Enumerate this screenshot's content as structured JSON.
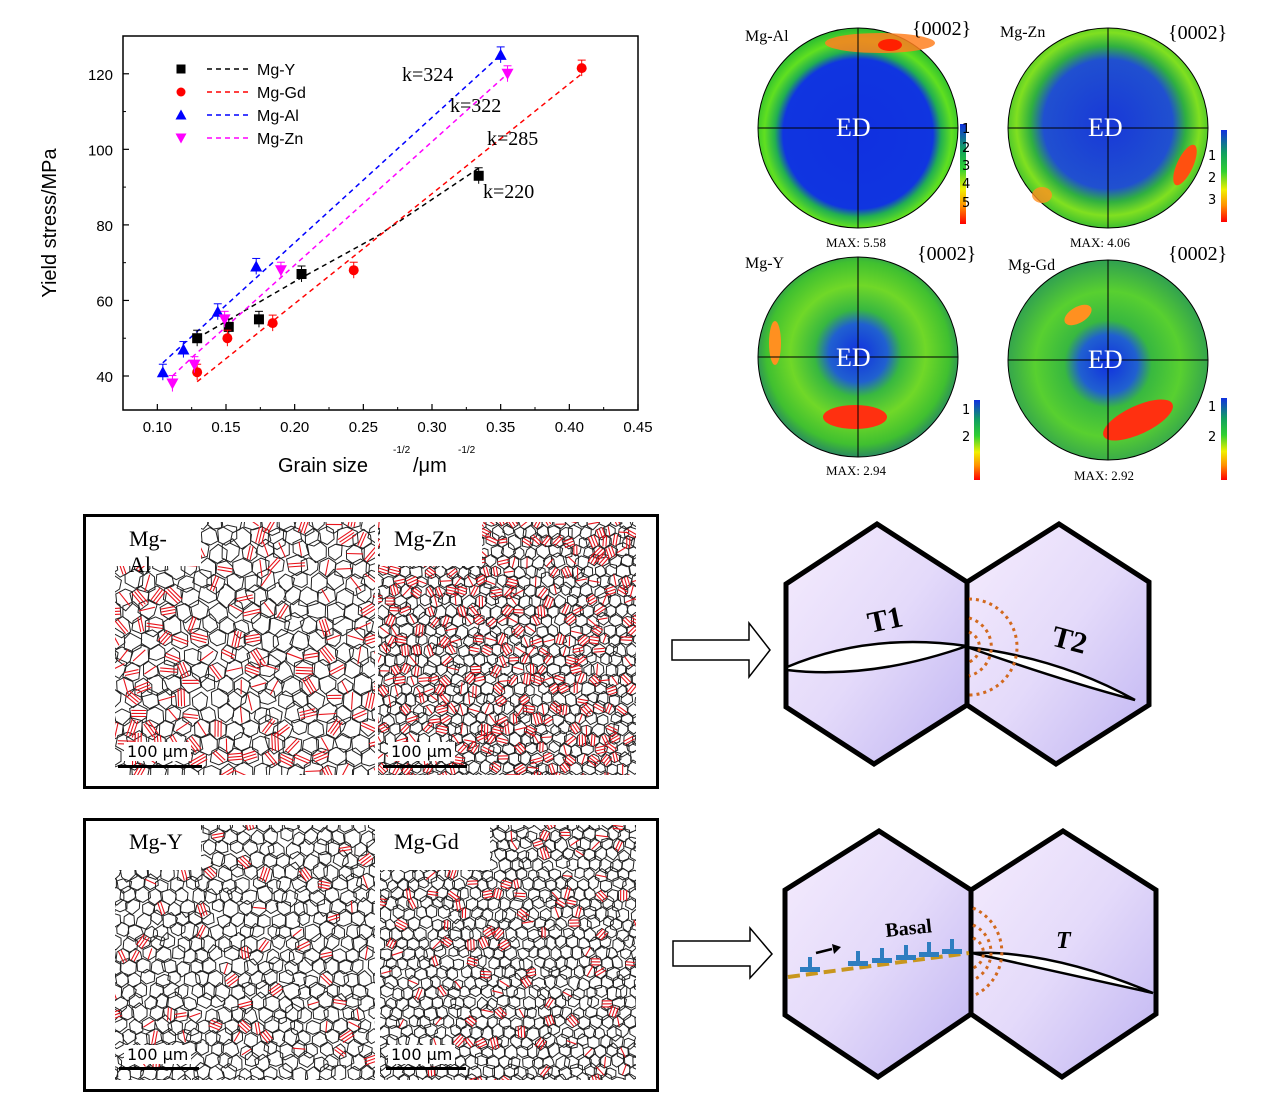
{
  "chart_data": {
    "type": "scatter",
    "title": "",
    "xlabel": "Grain size",
    "xlabel_sup1": "-1/2",
    "xlabel_unit": "/μm",
    "xlabel_sup2": "-1/2",
    "ylabel": "Yield stress/MPa",
    "xlim": [
      0.075,
      0.45
    ],
    "ylim": [
      31,
      130
    ],
    "xticks": [
      "0.10",
      "0.15",
      "0.20",
      "0.25",
      "0.30",
      "0.35",
      "0.40",
      "0.45"
    ],
    "xtick_values": [
      0.1,
      0.15,
      0.2,
      0.25,
      0.3,
      0.35,
      0.4,
      0.45
    ],
    "yticks": [
      "40",
      "60",
      "80",
      "100",
      "120"
    ],
    "ytick_values": [
      40,
      60,
      80,
      100,
      120
    ],
    "legend_position": "top-left",
    "series": [
      {
        "name": "Mg-Y",
        "color": "#000000",
        "marker": "square",
        "x": [
          0.129,
          0.152,
          0.174,
          0.205,
          0.334
        ],
        "y": [
          50,
          53,
          55,
          67,
          93
        ],
        "fit": {
          "x": [
            0.129,
            0.2,
            0.26,
            0.334
          ],
          "y": [
            50,
            65,
            77,
            95
          ]
        }
      },
      {
        "name": "Mg-Gd",
        "color": "#ff0000",
        "marker": "circle",
        "x": [
          0.129,
          0.151,
          0.184,
          0.243,
          0.409
        ],
        "y": [
          41,
          50,
          54,
          68,
          121.5
        ],
        "fit": {
          "x": [
            0.129,
            0.409
          ],
          "y": [
            38.5,
            120
          ]
        }
      },
      {
        "name": "Mg-Al",
        "color": "#0000ff",
        "marker": "triangle-up",
        "x": [
          0.104,
          0.119,
          0.144,
          0.172,
          0.35
        ],
        "y": [
          41,
          47,
          57,
          69,
          125
        ],
        "fit": {
          "x": [
            0.104,
            0.35
          ],
          "y": [
            43.5,
            125
          ]
        }
      },
      {
        "name": "Mg-Zn",
        "color": "#ff00ff",
        "marker": "triangle-down",
        "x": [
          0.111,
          0.127,
          0.149,
          0.19,
          0.355
        ],
        "y": [
          38,
          43,
          55,
          68,
          120
        ],
        "fit": {
          "x": [
            0.111,
            0.127,
            0.355
          ],
          "y": [
            40,
            45.5,
            120
          ]
        }
      }
    ],
    "annotations": [
      {
        "text": "k=324"
      },
      {
        "text": "k=322"
      },
      {
        "text": "k=285"
      },
      {
        "text": "k=220"
      }
    ]
  },
  "pole_figures": [
    {
      "alloy": "Mg-Al",
      "plane": "{0002}",
      "center": "ED",
      "max": "MAX: 5.58",
      "ticks": [
        "1",
        "2",
        "3",
        "4",
        "5"
      ]
    },
    {
      "alloy": "Mg-Zn",
      "plane": "{0002}",
      "center": "ED",
      "max": "MAX: 4.06",
      "ticks": [
        "1",
        "2",
        "3"
      ]
    },
    {
      "alloy": "Mg-Y",
      "plane": "{0002}",
      "center": "ED",
      "max": "MAX: 2.94",
      "ticks": [
        "1",
        "2"
      ]
    },
    {
      "alloy": "Mg-Gd",
      "plane": "{0002}",
      "center": "ED",
      "max": "MAX: 2.92",
      "ticks": [
        "1",
        "2"
      ]
    }
  ],
  "microstructures": {
    "row1": [
      {
        "alloy": "Mg-Al",
        "scale": "100 μm"
      },
      {
        "alloy": "Mg-Zn",
        "scale": "100 μm"
      }
    ],
    "row2": [
      {
        "alloy": "Mg-Y",
        "scale": "100 μm"
      },
      {
        "alloy": "Mg-Gd",
        "scale": "100 μm"
      }
    ]
  },
  "schematics": {
    "top": {
      "twin1": "T1",
      "twin2": "T2"
    },
    "bottom": {
      "slip": "Basal",
      "twin": "T"
    },
    "colors": {
      "hex_fill_light": "#f3e8fc",
      "hex_fill_dark": "#c6bcf4",
      "stress": "#d2691e",
      "dislocation": "#2e7dc0",
      "slip_line": "#c8961e"
    }
  }
}
